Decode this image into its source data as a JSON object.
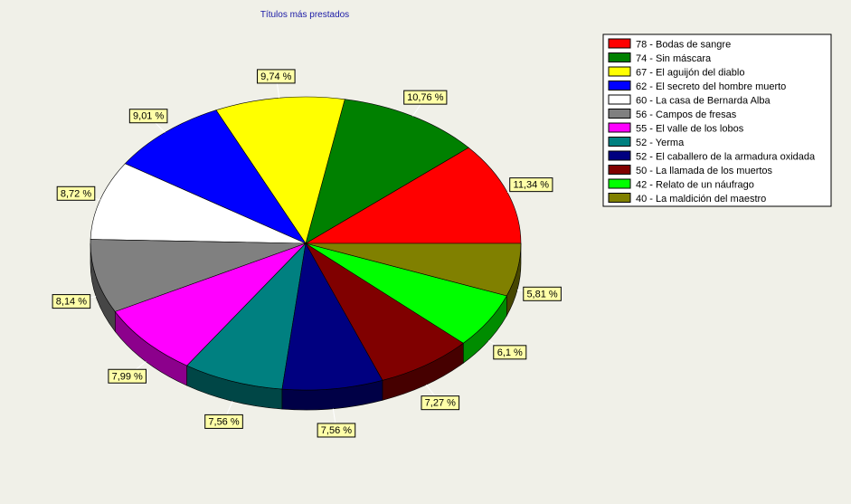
{
  "chart_data": {
    "type": "pie",
    "title": "Títulos más prestados",
    "legend_position": "top-right",
    "slices": [
      {
        "value": 78,
        "name": "Bodas de sangre",
        "pct": "11,34 %",
        "color": "#ff0000"
      },
      {
        "value": 74,
        "name": "Sin máscara",
        "pct": "10,76 %",
        "color": "#008000"
      },
      {
        "value": 67,
        "name": "El aguijón del diablo",
        "pct": "9,74 %",
        "color": "#ffff00"
      },
      {
        "value": 62,
        "name": "El secreto del hombre muerto",
        "pct": "9,01 %",
        "color": "#0000ff"
      },
      {
        "value": 60,
        "name": "La casa de Bernarda Alba",
        "pct": "8,72 %",
        "color": "#ffffff"
      },
      {
        "value": 56,
        "name": "Campos de fresas",
        "pct": "8,14 %",
        "color": "#808080"
      },
      {
        "value": 55,
        "name": "El valle de los lobos",
        "pct": "7,99 %",
        "color": "#ff00ff"
      },
      {
        "value": 52,
        "name": "Yerma",
        "pct": "7,56 %",
        "color": "#008080"
      },
      {
        "value": 52,
        "name": "El caballero de la armadura oxidada",
        "pct": "7,56 %",
        "color": "#000080"
      },
      {
        "value": 50,
        "name": "La llamada de los muertos",
        "pct": "7,27 %",
        "color": "#800000"
      },
      {
        "value": 42,
        "name": "Relato de un náufrago",
        "pct": "6,1 %",
        "color": "#00ff00"
      },
      {
        "value": 40,
        "name": "La maldición del maestro",
        "pct": "5,81 %",
        "color": "#808000"
      }
    ]
  }
}
